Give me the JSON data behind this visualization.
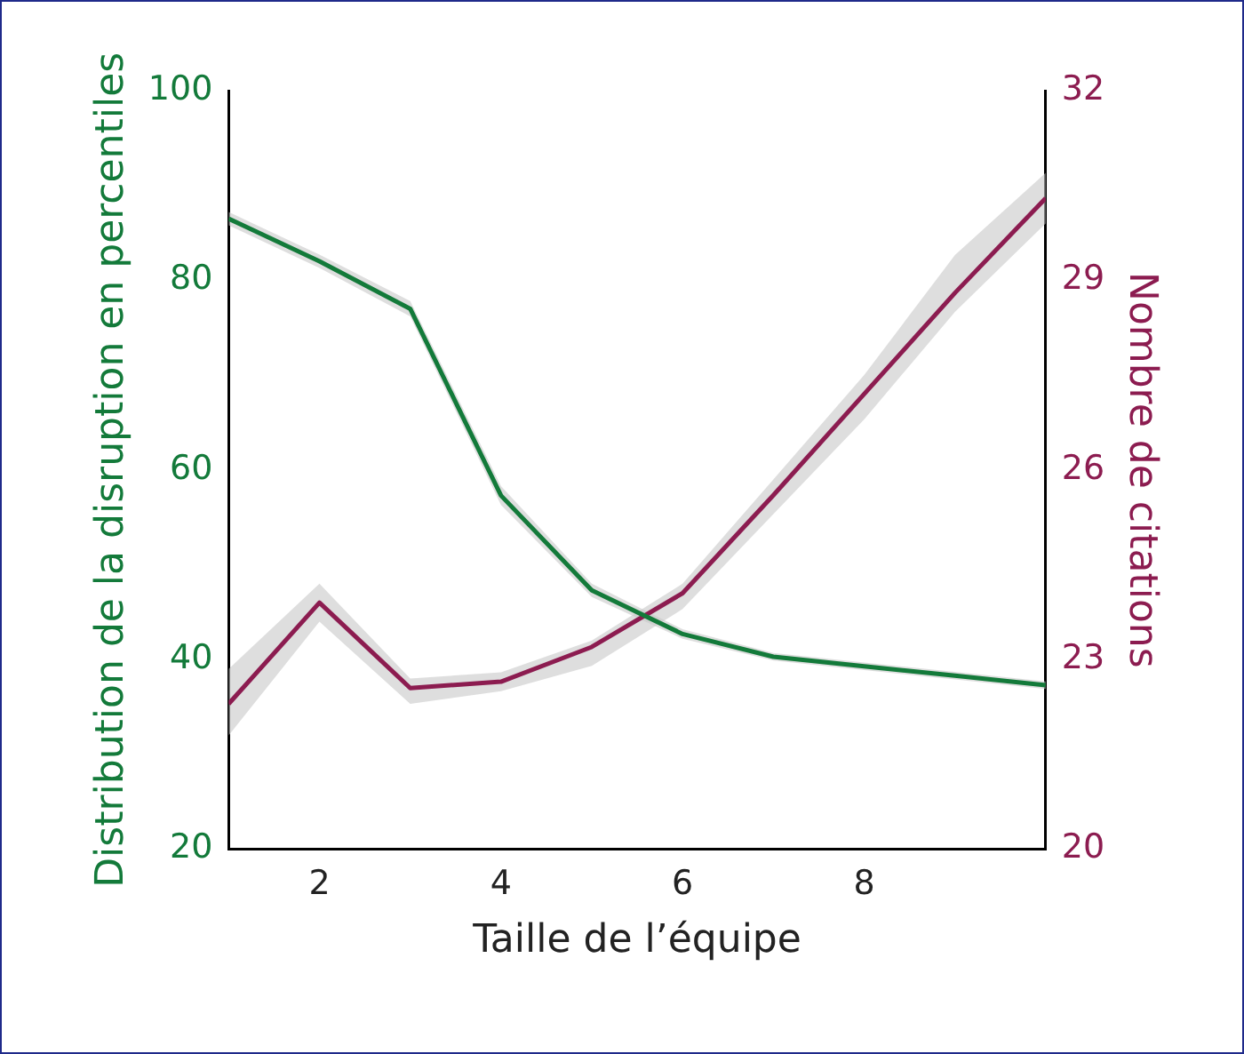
{
  "chart_data": {
    "type": "line",
    "xlabel": "Taille de l’équipe",
    "ylabel": "Distribution de la disruption en percentiles",
    "y2label": "Nombre de citations",
    "x": [
      1,
      2,
      3,
      4,
      5,
      6,
      7,
      8,
      9,
      10
    ],
    "xlim": [
      1,
      10
    ],
    "xticks": [
      2,
      4,
      6,
      8
    ],
    "ylim": [
      20,
      100
    ],
    "yticks": [
      20,
      40,
      60,
      80,
      100
    ],
    "y2lim": [
      20,
      32
    ],
    "y2ticks": [
      20,
      23,
      26,
      29,
      32
    ],
    "grid": false,
    "legend": false,
    "marker": "none",
    "line_style": "solid",
    "series": [
      {
        "color": "#137a3a",
        "values": [
          86.5,
          82,
          77,
          57.3,
          47.3,
          42.7,
          40.3,
          39.3,
          38.3,
          37.3
        ],
        "lower": [
          85.8,
          81.3,
          76.2,
          56.3,
          46.6,
          42.2,
          39.9,
          38.9,
          37.9,
          36.9
        ],
        "upper": [
          87.2,
          82.7,
          77.8,
          58.3,
          48,
          43.2,
          40.7,
          39.7,
          38.7,
          37.7
        ]
      },
      {
        "color": "#8c1c50",
        "axis": "y2",
        "values": [
          22.3,
          23.9,
          22.55,
          22.65,
          23.2,
          24.05,
          25.6,
          27.2,
          28.8,
          30.3
        ],
        "lower": [
          21.8,
          23.6,
          22.3,
          22.5,
          22.9,
          23.8,
          25.3,
          26.8,
          28.5,
          29.9
        ],
        "upper": [
          22.85,
          24.2,
          22.7,
          22.8,
          23.3,
          24.2,
          25.85,
          27.5,
          29.4,
          30.7
        ]
      }
    ]
  }
}
